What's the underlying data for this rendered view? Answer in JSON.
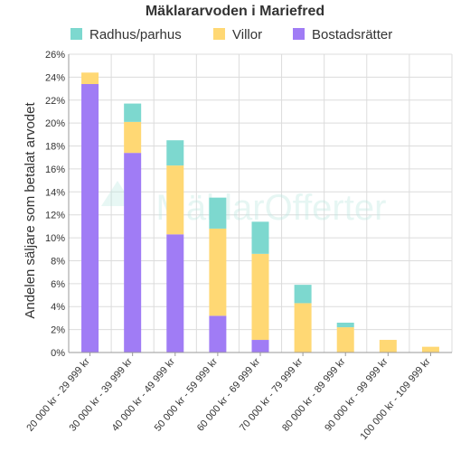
{
  "chart_data": {
    "type": "bar",
    "stacked": true,
    "title": "Mäklararvoden i Mariefred",
    "ylabel": "Andelen säljare som betalat arvodet",
    "xlabel": "",
    "ylim": [
      0,
      26
    ],
    "yticks": [
      "0%",
      "2%",
      "4%",
      "6%",
      "8%",
      "10%",
      "12%",
      "14%",
      "16%",
      "18%",
      "20%",
      "22%",
      "24%",
      "26%"
    ],
    "grid": true,
    "legend_position": "top",
    "categories": [
      "20 000 kr - 29 999 kr",
      "30 000 kr - 39 999 kr",
      "40 000 kr - 49 999 kr",
      "50 000 kr - 59 999 kr",
      "60 000 kr - 69 999 kr",
      "70 000 kr - 79 999 kr",
      "80 000 kr - 89 999 kr",
      "90 000 kr - 99 999 kr",
      "100 000 kr - 109 999 kr"
    ],
    "series": [
      {
        "name": "Bostadsrätter",
        "color": "#a07cf5",
        "values": [
          23.4,
          17.4,
          10.3,
          3.2,
          1.1,
          0,
          0,
          0,
          0
        ]
      },
      {
        "name": "Villor",
        "color": "#ffd874",
        "values": [
          1.0,
          2.7,
          6.0,
          7.6,
          7.5,
          4.3,
          2.2,
          1.1,
          0.5
        ]
      },
      {
        "name": "Radhus/parhus",
        "color": "#7dd8cf",
        "values": [
          0,
          1.6,
          2.2,
          2.7,
          2.8,
          1.6,
          0.4,
          0,
          0
        ]
      }
    ],
    "legend_order": [
      "Radhus/parhus",
      "Villor",
      "Bostadsrätter"
    ],
    "watermark": "MäklarOfferter"
  }
}
